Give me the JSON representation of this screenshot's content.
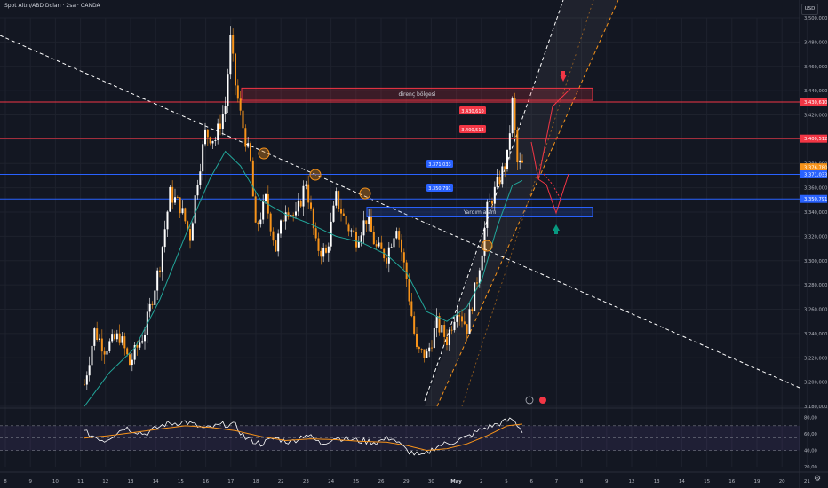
{
  "header": {
    "title": "Spot Altın/ABD Doları · 2sa · OANDA",
    "currency": "USD"
  },
  "icons": {
    "settings": "gear-icon"
  },
  "colors": {
    "background": "#131722",
    "grid": "#1e222d",
    "up": "#ffffff",
    "down": "#f7931a",
    "red_line": "#f23645",
    "blue_line": "#2962ff",
    "ma": "#22a69a",
    "rsi": "#ffffff",
    "rsi_ma": "#f7931a",
    "rsi_band": "#7e57c2",
    "arrow_red": "#f23645",
    "arrow_teal": "#089981"
  },
  "chart_data": [
    {
      "type": "candlestick",
      "ylim": [
        3180,
        3500
      ],
      "y_ticks": [
        "3.500,000",
        "3.480,000",
        "3.460,000",
        "3.440,000",
        "3.420,000",
        "3.400,000",
        "3.380,000",
        "3.360,000",
        "3.340,000",
        "3.320,000",
        "3.300,000",
        "3.280,000",
        "3.260,000",
        "3.240,000",
        "3.220,000",
        "3.200,000",
        "3.180,000"
      ],
      "x_ticks": [
        "8",
        "9",
        "10",
        "11",
        "12",
        "13",
        "14",
        "15",
        "16",
        "17",
        "18",
        "22",
        "23",
        "24",
        "25",
        "26",
        "29",
        "30",
        "May",
        "2",
        "5",
        "6",
        "7",
        "8",
        "9",
        "12",
        "13",
        "14",
        "15",
        "16",
        "19",
        "20",
        "21",
        "2"
      ],
      "price_path": [
        [
          0,
          3198
        ],
        [
          4,
          3242
        ],
        [
          8,
          3228
        ],
        [
          14,
          3238
        ],
        [
          18,
          3215
        ],
        [
          24,
          3242
        ],
        [
          30,
          3298
        ],
        [
          34,
          3355
        ],
        [
          38,
          3345
        ],
        [
          42,
          3320
        ],
        [
          45,
          3368
        ],
        [
          48,
          3405
        ],
        [
          52,
          3400
        ],
        [
          56,
          3428
        ],
        [
          58,
          3482
        ],
        [
          60,
          3445
        ],
        [
          62,
          3420
        ],
        [
          66,
          3380
        ],
        [
          68,
          3325
        ],
        [
          72,
          3350
        ],
        [
          76,
          3310
        ],
        [
          80,
          3345
        ],
        [
          84,
          3335
        ],
        [
          88,
          3366
        ],
        [
          92,
          3312
        ],
        [
          96,
          3305
        ],
        [
          100,
          3352
        ],
        [
          104,
          3330
        ],
        [
          108,
          3318
        ],
        [
          112,
          3335
        ],
        [
          116,
          3310
        ],
        [
          120,
          3304
        ],
        [
          124,
          3330
        ],
        [
          128,
          3285
        ],
        [
          132,
          3225
        ],
        [
          136,
          3222
        ],
        [
          140,
          3248
        ],
        [
          144,
          3235
        ],
        [
          148,
          3262
        ],
        [
          152,
          3245
        ],
        [
          156,
          3285
        ],
        [
          158,
          3310
        ],
        [
          160,
          3342
        ],
        [
          164,
          3362
        ],
        [
          168,
          3385
        ],
        [
          170,
          3430
        ],
        [
          172,
          3380
        ],
        [
          174,
          3378
        ]
      ],
      "moving_average": [
        [
          0,
          3180
        ],
        [
          10,
          3208
        ],
        [
          20,
          3228
        ],
        [
          30,
          3268
        ],
        [
          40,
          3320
        ],
        [
          50,
          3368
        ],
        [
          56,
          3390
        ],
        [
          62,
          3378
        ],
        [
          70,
          3350
        ],
        [
          80,
          3338
        ],
        [
          90,
          3330
        ],
        [
          100,
          3320
        ],
        [
          110,
          3315
        ],
        [
          120,
          3305
        ],
        [
          128,
          3290
        ],
        [
          136,
          3258
        ],
        [
          144,
          3250
        ],
        [
          152,
          3262
        ],
        [
          158,
          3285
        ],
        [
          164,
          3328
        ],
        [
          170,
          3362
        ],
        [
          174,
          3366
        ]
      ],
      "horizontal_levels": [
        {
          "value": 3430.61,
          "label": "3.430,610",
          "color": "#f23645"
        },
        {
          "value": 3400.512,
          "label": "3.400,512",
          "color": "#f23645"
        },
        {
          "value": 3371.033,
          "label": "3.371,033",
          "color": "#2962ff"
        },
        {
          "value": 3350.791,
          "label": "3.350,791",
          "color": "#2962ff"
        }
      ],
      "chart_labels": [
        {
          "text": "3.430,610",
          "color": "#f23645"
        },
        {
          "text": "3.400,512",
          "color": "#f23645"
        },
        {
          "text": "3.371,033",
          "color": "#2962ff"
        },
        {
          "text": "3.350,791",
          "color": "#2962ff"
        }
      ],
      "axis_badges": [
        {
          "text": "3.430,610",
          "value": 3430.61,
          "color": "#f23645"
        },
        {
          "text": "3.400,512",
          "value": 3400.512,
          "color": "#f23645"
        },
        {
          "text": "3.376,780",
          "value": 3376.78,
          "color": "#f7931a"
        },
        {
          "text": "3.371,033",
          "value": 3371.033,
          "color": "#2962ff"
        },
        {
          "text": "3.350,791",
          "value": 3350.791,
          "color": "#2962ff"
        }
      ],
      "zones": [
        {
          "label": "direnç bölgesi",
          "top": 3442,
          "bottom": 3432,
          "color": "#f23645"
        },
        {
          "label": "Yardım alanı",
          "top": 3344,
          "bottom": 3336,
          "color": "#2962ff"
        }
      ]
    },
    {
      "type": "line",
      "name": "RSI",
      "ylim": [
        20,
        85
      ],
      "y_ticks": [
        "80,00",
        "60,00",
        "40,00",
        "20,00"
      ],
      "band": [
        40,
        70
      ],
      "rsi": [
        [
          0,
          62
        ],
        [
          8,
          52
        ],
        [
          16,
          68
        ],
        [
          24,
          60
        ],
        [
          32,
          72
        ],
        [
          40,
          75
        ],
        [
          48,
          66
        ],
        [
          56,
          72
        ],
        [
          60,
          70
        ],
        [
          64,
          55
        ],
        [
          70,
          48
        ],
        [
          76,
          55
        ],
        [
          82,
          50
        ],
        [
          88,
          60
        ],
        [
          94,
          48
        ],
        [
          100,
          56
        ],
        [
          108,
          52
        ],
        [
          116,
          50
        ],
        [
          122,
          56
        ],
        [
          128,
          40
        ],
        [
          134,
          32
        ],
        [
          140,
          45
        ],
        [
          146,
          50
        ],
        [
          152,
          56
        ],
        [
          158,
          66
        ],
        [
          164,
          72
        ],
        [
          170,
          78
        ],
        [
          174,
          64
        ]
      ],
      "rsi_ma": [
        [
          0,
          55
        ],
        [
          10,
          58
        ],
        [
          20,
          62
        ],
        [
          30,
          66
        ],
        [
          40,
          70
        ],
        [
          50,
          68
        ],
        [
          60,
          64
        ],
        [
          70,
          57
        ],
        [
          80,
          52
        ],
        [
          90,
          54
        ],
        [
          100,
          53
        ],
        [
          110,
          51
        ],
        [
          120,
          50
        ],
        [
          128,
          46
        ],
        [
          136,
          40
        ],
        [
          144,
          42
        ],
        [
          152,
          48
        ],
        [
          160,
          58
        ],
        [
          168,
          70
        ],
        [
          174,
          72
        ]
      ]
    }
  ]
}
